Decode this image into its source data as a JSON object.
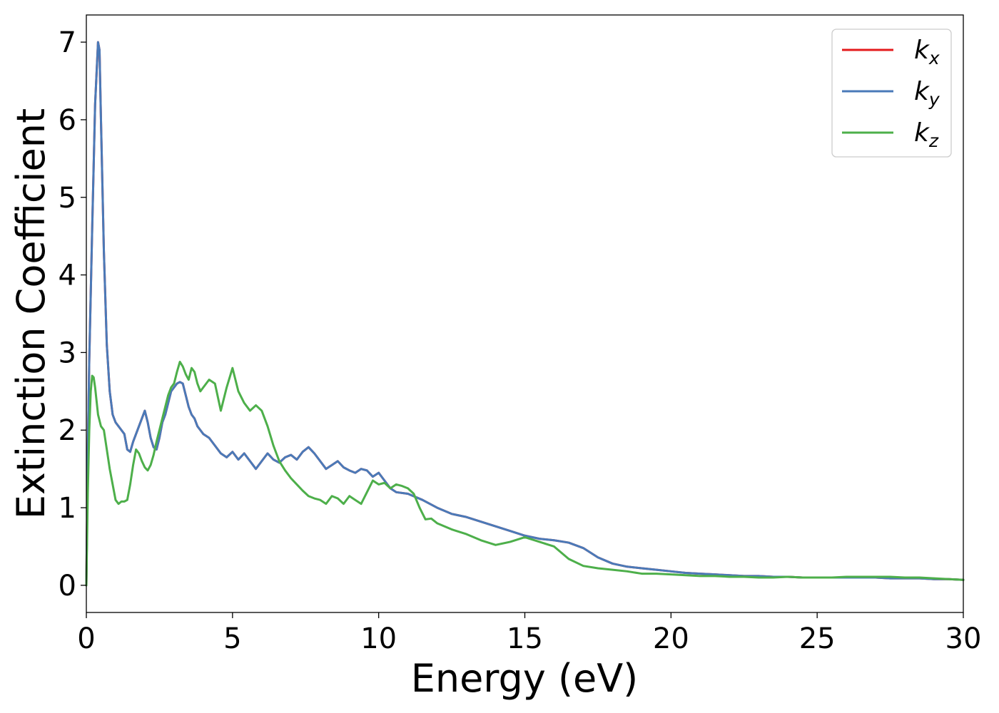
{
  "chart_data": {
    "type": "line",
    "xlabel": "Energy (eV)",
    "ylabel": "Extinction Coefficient",
    "xlim": [
      0,
      30
    ],
    "ylim": [
      -0.35,
      7.35
    ],
    "xticks": [
      0,
      5,
      10,
      15,
      20,
      25,
      30
    ],
    "yticks": [
      0,
      1,
      2,
      3,
      4,
      5,
      6,
      7
    ],
    "grid": false,
    "legend_position": "top-right",
    "series": [
      {
        "name": "k_x",
        "label_base": "k",
        "label_sub": "x",
        "color": "#e41a1c",
        "x": [
          0,
          0.05,
          0.1,
          0.2,
          0.3,
          0.4,
          0.45,
          0.5,
          0.6,
          0.7,
          0.8,
          0.9,
          1.0,
          1.1,
          1.2,
          1.3,
          1.4,
          1.5,
          1.6,
          1.7,
          1.8,
          1.9,
          2.0,
          2.1,
          2.2,
          2.3,
          2.4,
          2.5,
          2.6,
          2.7,
          2.8,
          2.9,
          3.0,
          3.1,
          3.2,
          3.3,
          3.4,
          3.5,
          3.6,
          3.7,
          3.8,
          3.9,
          4.0,
          4.2,
          4.4,
          4.6,
          4.8,
          5.0,
          5.2,
          5.4,
          5.6,
          5.8,
          6.0,
          6.2,
          6.4,
          6.6,
          6.8,
          7.0,
          7.2,
          7.4,
          7.6,
          7.8,
          8.0,
          8.2,
          8.4,
          8.6,
          8.8,
          9.0,
          9.2,
          9.4,
          9.6,
          9.8,
          10.0,
          10.2,
          10.4,
          10.6,
          11.0,
          11.5,
          12.0,
          12.5,
          13.0,
          13.5,
          14.0,
          14.5,
          15.0,
          15.5,
          16.0,
          16.5,
          17.0,
          17.5,
          18.0,
          18.5,
          19.0,
          19.5,
          20.0,
          20.5,
          21.0,
          21.5,
          22.0,
          22.5,
          23.0,
          23.5,
          24.0,
          24.5,
          25.0,
          25.5,
          26.0,
          26.5,
          27.0,
          27.5,
          28.0,
          28.5,
          29.0,
          29.5,
          30.0
        ],
        "values": [
          0.0,
          1.7,
          2.9,
          4.6,
          6.2,
          7.0,
          6.9,
          6.0,
          4.3,
          3.1,
          2.5,
          2.2,
          2.1,
          2.05,
          2.0,
          1.95,
          1.75,
          1.72,
          1.85,
          1.95,
          2.05,
          2.15,
          2.25,
          2.1,
          1.9,
          1.78,
          1.75,
          1.9,
          2.1,
          2.2,
          2.35,
          2.5,
          2.55,
          2.6,
          2.62,
          2.6,
          2.45,
          2.3,
          2.2,
          2.15,
          2.05,
          2.0,
          1.95,
          1.9,
          1.8,
          1.7,
          1.65,
          1.72,
          1.62,
          1.7,
          1.6,
          1.5,
          1.6,
          1.7,
          1.62,
          1.58,
          1.65,
          1.68,
          1.62,
          1.72,
          1.78,
          1.7,
          1.6,
          1.5,
          1.55,
          1.6,
          1.52,
          1.48,
          1.45,
          1.5,
          1.48,
          1.4,
          1.45,
          1.35,
          1.25,
          1.2,
          1.18,
          1.1,
          1.0,
          0.92,
          0.88,
          0.82,
          0.76,
          0.7,
          0.64,
          0.6,
          0.58,
          0.55,
          0.48,
          0.36,
          0.28,
          0.24,
          0.22,
          0.2,
          0.18,
          0.16,
          0.15,
          0.14,
          0.13,
          0.12,
          0.12,
          0.11,
          0.11,
          0.1,
          0.1,
          0.1,
          0.1,
          0.1,
          0.1,
          0.09,
          0.09,
          0.09,
          0.08,
          0.08,
          0.07
        ]
      },
      {
        "name": "k_y",
        "label_base": "k",
        "label_sub": "y",
        "color": "#4a7ab8",
        "x": [
          0,
          0.05,
          0.1,
          0.2,
          0.3,
          0.4,
          0.45,
          0.5,
          0.6,
          0.7,
          0.8,
          0.9,
          1.0,
          1.1,
          1.2,
          1.3,
          1.4,
          1.5,
          1.6,
          1.7,
          1.8,
          1.9,
          2.0,
          2.1,
          2.2,
          2.3,
          2.4,
          2.5,
          2.6,
          2.7,
          2.8,
          2.9,
          3.0,
          3.1,
          3.2,
          3.3,
          3.4,
          3.5,
          3.6,
          3.7,
          3.8,
          3.9,
          4.0,
          4.2,
          4.4,
          4.6,
          4.8,
          5.0,
          5.2,
          5.4,
          5.6,
          5.8,
          6.0,
          6.2,
          6.4,
          6.6,
          6.8,
          7.0,
          7.2,
          7.4,
          7.6,
          7.8,
          8.0,
          8.2,
          8.4,
          8.6,
          8.8,
          9.0,
          9.2,
          9.4,
          9.6,
          9.8,
          10.0,
          10.2,
          10.4,
          10.6,
          11.0,
          11.5,
          12.0,
          12.5,
          13.0,
          13.5,
          14.0,
          14.5,
          15.0,
          15.5,
          16.0,
          16.5,
          17.0,
          17.5,
          18.0,
          18.5,
          19.0,
          19.5,
          20.0,
          20.5,
          21.0,
          21.5,
          22.0,
          22.5,
          23.0,
          23.5,
          24.0,
          24.5,
          25.0,
          25.5,
          26.0,
          26.5,
          27.0,
          27.5,
          28.0,
          28.5,
          29.0,
          29.5,
          30.0
        ],
        "values": [
          0.0,
          1.7,
          2.9,
          4.6,
          6.2,
          7.0,
          6.9,
          6.0,
          4.3,
          3.1,
          2.5,
          2.2,
          2.1,
          2.05,
          2.0,
          1.95,
          1.75,
          1.72,
          1.85,
          1.95,
          2.05,
          2.15,
          2.25,
          2.1,
          1.9,
          1.78,
          1.75,
          1.9,
          2.1,
          2.2,
          2.35,
          2.5,
          2.55,
          2.6,
          2.62,
          2.6,
          2.45,
          2.3,
          2.2,
          2.15,
          2.05,
          2.0,
          1.95,
          1.9,
          1.8,
          1.7,
          1.65,
          1.72,
          1.62,
          1.7,
          1.6,
          1.5,
          1.6,
          1.7,
          1.62,
          1.58,
          1.65,
          1.68,
          1.62,
          1.72,
          1.78,
          1.7,
          1.6,
          1.5,
          1.55,
          1.6,
          1.52,
          1.48,
          1.45,
          1.5,
          1.48,
          1.4,
          1.45,
          1.35,
          1.25,
          1.2,
          1.18,
          1.1,
          1.0,
          0.92,
          0.88,
          0.82,
          0.76,
          0.7,
          0.64,
          0.6,
          0.58,
          0.55,
          0.48,
          0.36,
          0.28,
          0.24,
          0.22,
          0.2,
          0.18,
          0.16,
          0.15,
          0.14,
          0.13,
          0.12,
          0.12,
          0.11,
          0.11,
          0.1,
          0.1,
          0.1,
          0.1,
          0.1,
          0.1,
          0.09,
          0.09,
          0.09,
          0.08,
          0.08,
          0.07
        ]
      },
      {
        "name": "k_z",
        "label_base": "k",
        "label_sub": "z",
        "color": "#4daf4a",
        "x": [
          0,
          0.05,
          0.1,
          0.15,
          0.2,
          0.25,
          0.3,
          0.4,
          0.5,
          0.6,
          0.7,
          0.8,
          0.9,
          1.0,
          1.1,
          1.2,
          1.3,
          1.4,
          1.5,
          1.6,
          1.7,
          1.8,
          1.9,
          2.0,
          2.1,
          2.2,
          2.3,
          2.4,
          2.5,
          2.6,
          2.7,
          2.8,
          2.9,
          3.0,
          3.1,
          3.2,
          3.3,
          3.4,
          3.5,
          3.6,
          3.7,
          3.8,
          3.9,
          4.0,
          4.2,
          4.4,
          4.6,
          4.8,
          5.0,
          5.2,
          5.4,
          5.6,
          5.8,
          6.0,
          6.2,
          6.4,
          6.6,
          6.8,
          7.0,
          7.2,
          7.4,
          7.6,
          7.8,
          8.0,
          8.2,
          8.4,
          8.6,
          8.8,
          9.0,
          9.2,
          9.4,
          9.6,
          9.8,
          10.0,
          10.2,
          10.4,
          10.6,
          10.8,
          11.0,
          11.2,
          11.4,
          11.6,
          11.8,
          12.0,
          12.5,
          13.0,
          13.5,
          14.0,
          14.5,
          15.0,
          15.5,
          16.0,
          16.5,
          17.0,
          17.5,
          18.0,
          18.5,
          19.0,
          19.5,
          20.0,
          20.5,
          21.0,
          21.5,
          22.0,
          22.5,
          23.0,
          23.5,
          24.0,
          24.5,
          25.0,
          25.5,
          26.0,
          26.5,
          27.0,
          27.5,
          28.0,
          28.5,
          29.0,
          29.5,
          30.0
        ],
        "values": [
          0.0,
          1.2,
          2.0,
          2.5,
          2.7,
          2.68,
          2.55,
          2.2,
          2.05,
          2.0,
          1.75,
          1.5,
          1.3,
          1.1,
          1.05,
          1.08,
          1.08,
          1.1,
          1.3,
          1.55,
          1.75,
          1.7,
          1.6,
          1.52,
          1.48,
          1.55,
          1.68,
          1.85,
          2.0,
          2.15,
          2.3,
          2.45,
          2.55,
          2.6,
          2.75,
          2.88,
          2.82,
          2.72,
          2.65,
          2.8,
          2.75,
          2.6,
          2.5,
          2.55,
          2.65,
          2.6,
          2.25,
          2.55,
          2.8,
          2.5,
          2.35,
          2.25,
          2.32,
          2.25,
          2.05,
          1.8,
          1.6,
          1.48,
          1.38,
          1.3,
          1.22,
          1.15,
          1.12,
          1.1,
          1.05,
          1.15,
          1.12,
          1.05,
          1.15,
          1.1,
          1.05,
          1.2,
          1.35,
          1.3,
          1.32,
          1.25,
          1.3,
          1.28,
          1.25,
          1.18,
          1.0,
          0.85,
          0.86,
          0.8,
          0.72,
          0.66,
          0.58,
          0.52,
          0.56,
          0.62,
          0.56,
          0.5,
          0.34,
          0.25,
          0.22,
          0.2,
          0.18,
          0.15,
          0.15,
          0.14,
          0.13,
          0.12,
          0.12,
          0.11,
          0.11,
          0.1,
          0.1,
          0.11,
          0.1,
          0.1,
          0.1,
          0.11,
          0.11,
          0.11,
          0.11,
          0.1,
          0.1,
          0.09,
          0.08,
          0.07
        ]
      }
    ]
  }
}
